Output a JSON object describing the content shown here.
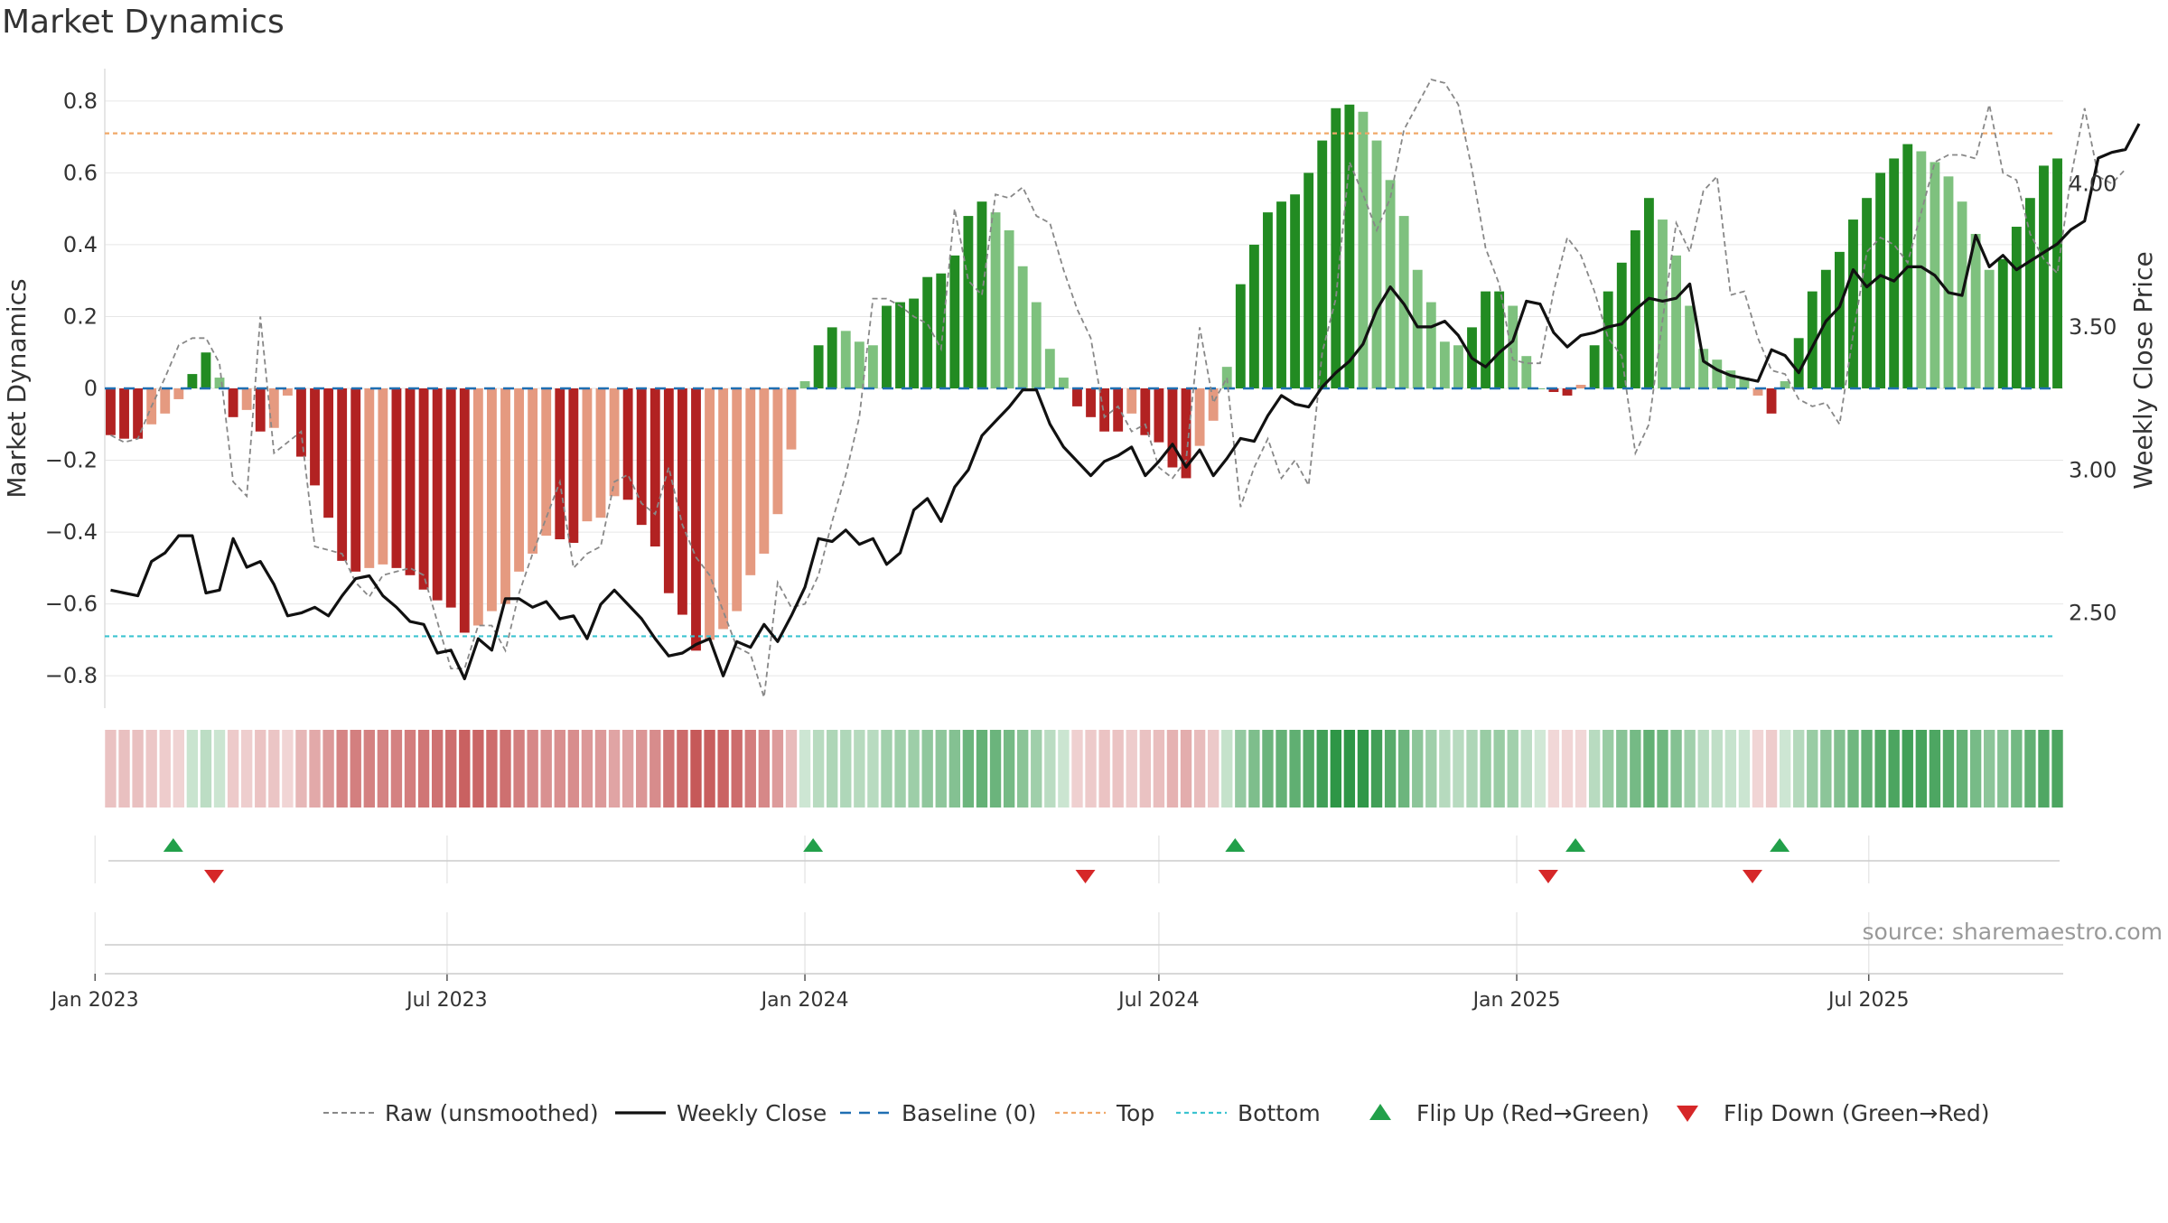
{
  "title": "Market Dynamics",
  "source": "source: sharemaestro.com",
  "colors": {
    "strong_green": "#228b22",
    "light_green": "#7ec17e",
    "strong_red": "#b22222",
    "light_red": "#e59a80",
    "raw_line": "#888888",
    "close_line": "#111111",
    "baseline": "#1f6fb2",
    "top_line": "#f0a868",
    "bottom_line": "#3cc3d0",
    "flip_up": "#22a04a",
    "flip_down": "#d62728"
  },
  "chart_data": {
    "type": "bar",
    "title": "Market Dynamics",
    "ylabel_left": "Market Dynamics",
    "ylabel_right": "Weekly Close Price",
    "ylim_left": [
      -0.88,
      0.88
    ],
    "ylim_right": [
      2.18,
      4.39
    ],
    "left_ticks": [
      "0.8",
      "0.6",
      "0.4",
      "0.2",
      "0",
      "−0.2",
      "−0.4",
      "−0.6",
      "−0.8"
    ],
    "right_ticks": [
      "4.00",
      "3.50",
      "3.00",
      "2.50"
    ],
    "x_ticks": [
      "Jan 2023",
      "Jul 2023",
      "Jan 2024",
      "Jul 2024",
      "Jan 2025",
      "Jul 2025"
    ],
    "start_date": "2023-01-09",
    "period": "weekly",
    "top_level": 0.71,
    "bottom_level": -0.69,
    "baseline": 0,
    "grid": true,
    "legend_position": "bottom",
    "legend": [
      "Raw (unsmoothed)",
      "Weekly Close",
      "Baseline (0)",
      "Top",
      "Bottom",
      "Flip Up (Red→Green)",
      "Flip Down (Green→Red)"
    ],
    "momentum": [
      -0.13,
      -0.14,
      -0.14,
      -0.1,
      -0.07,
      -0.03,
      0.04,
      0.1,
      0.03,
      -0.08,
      -0.06,
      -0.12,
      -0.11,
      -0.02,
      -0.19,
      -0.27,
      -0.36,
      -0.48,
      -0.51,
      -0.5,
      -0.49,
      -0.5,
      -0.52,
      -0.56,
      -0.59,
      -0.61,
      -0.68,
      -0.66,
      -0.62,
      -0.6,
      -0.51,
      -0.46,
      -0.41,
      -0.42,
      -0.43,
      -0.37,
      -0.36,
      -0.3,
      -0.31,
      -0.38,
      -0.44,
      -0.57,
      -0.63,
      -0.73,
      -0.7,
      -0.67,
      -0.62,
      -0.52,
      -0.46,
      -0.35,
      -0.17,
      0.02,
      0.12,
      0.17,
      0.16,
      0.13,
      0.12,
      0.23,
      0.24,
      0.25,
      0.31,
      0.32,
      0.37,
      0.48,
      0.52,
      0.49,
      0.44,
      0.34,
      0.24,
      0.11,
      0.03,
      -0.05,
      -0.08,
      -0.12,
      -0.12,
      -0.07,
      -0.13,
      -0.15,
      -0.22,
      -0.25,
      -0.16,
      -0.09,
      0.06,
      0.29,
      0.4,
      0.49,
      0.52,
      0.54,
      0.6,
      0.69,
      0.78,
      0.79,
      0.77,
      0.69,
      0.58,
      0.48,
      0.33,
      0.24,
      0.13,
      0.12,
      0.17,
      0.27,
      0.27,
      0.23,
      0.09,
      0.0,
      -0.01,
      -0.02,
      0.01,
      0.12,
      0.27,
      0.35,
      0.44,
      0.53,
      0.47,
      0.37,
      0.23,
      0.11,
      0.08,
      0.05,
      0.03,
      -0.02,
      -0.07,
      0.02,
      0.14,
      0.27,
      0.33,
      0.38,
      0.47,
      0.53,
      0.6,
      0.64,
      0.68,
      0.66,
      0.63,
      0.59,
      0.52,
      0.43,
      0.33,
      0.36,
      0.45,
      0.53,
      0.62,
      0.64
    ],
    "raw": [
      -0.13,
      -0.15,
      -0.14,
      -0.05,
      0.03,
      0.12,
      0.14,
      0.14,
      0.07,
      -0.26,
      -0.3,
      0.2,
      -0.18,
      -0.15,
      -0.12,
      -0.44,
      -0.45,
      -0.46,
      -0.54,
      -0.58,
      -0.52,
      -0.51,
      -0.5,
      -0.52,
      -0.65,
      -0.78,
      -0.78,
      -0.66,
      -0.66,
      -0.73,
      -0.57,
      -0.46,
      -0.36,
      -0.26,
      -0.5,
      -0.46,
      -0.44,
      -0.26,
      -0.24,
      -0.32,
      -0.35,
      -0.22,
      -0.38,
      -0.47,
      -0.52,
      -0.62,
      -0.72,
      -0.74,
      -0.86,
      -0.54,
      -0.61,
      -0.6,
      -0.52,
      -0.37,
      -0.24,
      -0.08,
      0.25,
      0.25,
      0.23,
      0.2,
      0.18,
      0.11,
      0.5,
      0.3,
      0.26,
      0.54,
      0.53,
      0.56,
      0.48,
      0.46,
      0.33,
      0.22,
      0.14,
      -0.08,
      -0.05,
      -0.12,
      -0.1,
      -0.22,
      -0.25,
      -0.2,
      0.17,
      -0.04,
      0.03,
      -0.33,
      -0.22,
      -0.14,
      -0.25,
      -0.2,
      -0.27,
      0.1,
      0.25,
      0.63,
      0.54,
      0.44,
      0.53,
      0.72,
      0.79,
      0.86,
      0.85,
      0.79,
      0.61,
      0.39,
      0.29,
      0.08,
      0.07,
      0.07,
      0.27,
      0.42,
      0.37,
      0.27,
      0.14,
      0.09,
      -0.18,
      -0.1,
      0.19,
      0.46,
      0.38,
      0.55,
      0.59,
      0.26,
      0.27,
      0.14,
      0.05,
      0.04,
      -0.03,
      -0.05,
      -0.04,
      -0.1,
      0.15,
      0.38,
      0.42,
      0.4,
      0.35,
      0.49,
      0.63,
      0.65,
      0.65,
      0.64,
      0.79,
      0.6,
      0.58,
      0.43,
      0.36,
      0.32,
      0.59,
      0.78,
      0.59,
      0.57,
      0.61
    ],
    "close": [
      2.58,
      2.57,
      2.56,
      2.68,
      2.71,
      2.77,
      2.77,
      2.57,
      2.58,
      2.76,
      2.66,
      2.68,
      2.6,
      2.49,
      2.5,
      2.52,
      2.49,
      2.56,
      2.62,
      2.63,
      2.56,
      2.52,
      2.47,
      2.46,
      2.36,
      2.37,
      2.27,
      2.41,
      2.37,
      2.55,
      2.55,
      2.52,
      2.54,
      2.48,
      2.49,
      2.41,
      2.53,
      2.58,
      2.53,
      2.48,
      2.41,
      2.35,
      2.36,
      2.39,
      2.41,
      2.28,
      2.4,
      2.38,
      2.46,
      2.4,
      2.49,
      2.59,
      2.76,
      2.75,
      2.79,
      2.74,
      2.76,
      2.67,
      2.71,
      2.86,
      2.9,
      2.82,
      2.94,
      3.0,
      3.12,
      3.17,
      3.22,
      3.28,
      3.28,
      3.16,
      3.08,
      3.03,
      2.98,
      3.03,
      3.05,
      3.08,
      2.98,
      3.03,
      3.09,
      3.01,
      3.07,
      2.98,
      3.04,
      3.11,
      3.1,
      3.19,
      3.26,
      3.23,
      3.22,
      3.29,
      3.34,
      3.38,
      3.44,
      3.56,
      3.64,
      3.58,
      3.5,
      3.5,
      3.52,
      3.47,
      3.39,
      3.36,
      3.41,
      3.45,
      3.59,
      3.58,
      3.48,
      3.43,
      3.47,
      3.48,
      3.5,
      3.51,
      3.56,
      3.6,
      3.59,
      3.6,
      3.65,
      3.38,
      3.35,
      3.33,
      3.32,
      3.31,
      3.42,
      3.4,
      3.34,
      3.43,
      3.52,
      3.57,
      3.7,
      3.64,
      3.68,
      3.66,
      3.71,
      3.71,
      3.68,
      3.62,
      3.61,
      3.82,
      3.71,
      3.75,
      3.7,
      3.73,
      3.76,
      3.79,
      3.84,
      3.87,
      4.09,
      4.11,
      4.12,
      4.21
    ],
    "regime": [
      -1,
      -1,
      -1,
      -1,
      -1,
      -1,
      1,
      1,
      1,
      -1,
      -1,
      -1,
      -1,
      -1,
      -1,
      -1,
      -1,
      -1,
      -1,
      -1,
      -1,
      -1,
      -1,
      -1,
      -1,
      -1,
      -1,
      -1,
      -1,
      -1,
      -1,
      -1,
      -1,
      -1,
      -1,
      -1,
      -1,
      -1,
      -1,
      -1,
      -1,
      -1,
      -1,
      -1,
      -1,
      -1,
      -1,
      -1,
      -1,
      -1,
      -1,
      1,
      1,
      1,
      1,
      1,
      1,
      1,
      1,
      1,
      1,
      1,
      1,
      1,
      1,
      1,
      1,
      1,
      1,
      1,
      1,
      -1,
      -1,
      -1,
      -1,
      -1,
      -1,
      -1,
      -1,
      -1,
      -1,
      -1,
      1,
      1,
      1,
      1,
      1,
      1,
      1,
      1,
      1,
      1,
      1,
      1,
      1,
      1,
      1,
      1,
      1,
      1,
      1,
      1,
      1,
      1,
      1,
      1,
      -1,
      -1,
      -1,
      1,
      1,
      1,
      1,
      1,
      1,
      1,
      1,
      1,
      1,
      1,
      1,
      -1,
      -1,
      1,
      1,
      1,
      1,
      1,
      1,
      1,
      1,
      1,
      1,
      1,
      1,
      1,
      1,
      1,
      1,
      1,
      1,
      1,
      1,
      1,
      1,
      1
    ],
    "flips": [
      {
        "type": "up",
        "week": 5
      },
      {
        "type": "down",
        "week": 8
      },
      {
        "type": "up",
        "week": 52
      },
      {
        "type": "down",
        "week": 72
      },
      {
        "type": "up",
        "week": 83
      },
      {
        "type": "down",
        "week": 106
      },
      {
        "type": "up",
        "week": 108
      },
      {
        "type": "down",
        "week": 121
      },
      {
        "type": "up",
        "week": 123
      }
    ]
  }
}
